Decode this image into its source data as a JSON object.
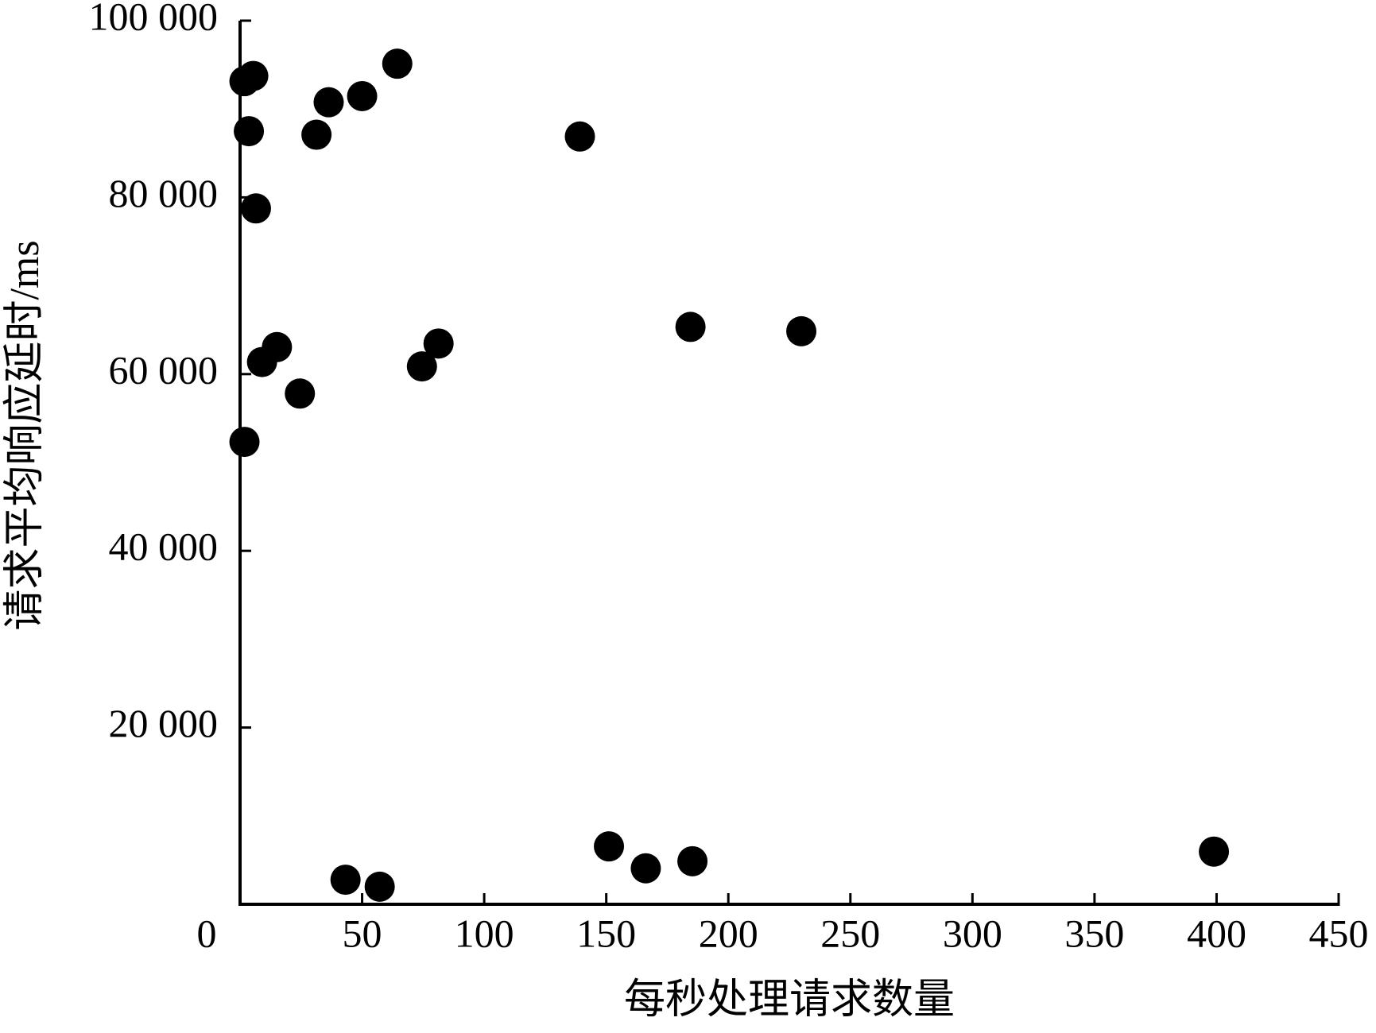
{
  "chart_data": {
    "type": "scatter",
    "x_label": "每秒处理请求数量",
    "y_label": "请求平均响应延时/ms",
    "color": "#000000",
    "xlim": [
      0,
      450
    ],
    "xticks": [
      0,
      50,
      100,
      150,
      200,
      250,
      300,
      350,
      400,
      450
    ],
    "ylim": [
      0,
      100000
    ],
    "yticks": [
      {
        "value": 20000,
        "label": "20 000"
      },
      {
        "value": 40000,
        "label": "40 000"
      },
      {
        "value": 60000,
        "label": "60 000"
      },
      {
        "value": 80000,
        "label": "80 000"
      },
      {
        "value": 100000,
        "label": "100 000"
      }
    ],
    "grid": false,
    "x": [
      1.8,
      5.4,
      3.6,
      6.5,
      1.8,
      9.0,
      15.1,
      24.5,
      31.3,
      36.3,
      50.0,
      64.4,
      74.5,
      81.3,
      139.2,
      184.5,
      229.9,
      151.1,
      166.2,
      185.3,
      398.9,
      43.2,
      57.2
    ],
    "values": [
      93150,
      93740,
      87490,
      78750,
      52330,
      61370,
      63060,
      57800,
      87090,
      90770,
      91460,
      95130,
      60870,
      63460,
      86890,
      65340,
      64850,
      6550,
      4070,
      4870,
      5960,
      2780,
      1990
    ]
  }
}
